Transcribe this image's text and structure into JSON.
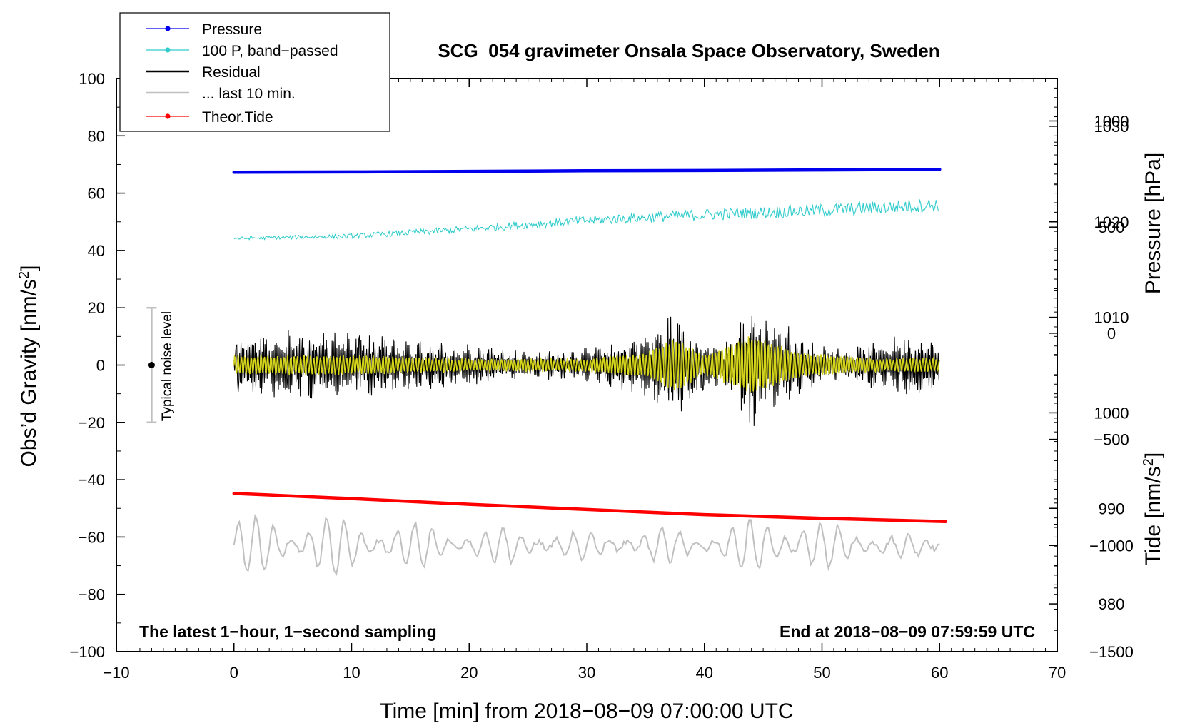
{
  "chart_data": {
    "type": "line",
    "title": "SCG_054 gravimeter Onsala Space Observatory, Sweden",
    "xlabel": "Time [min] from 2018−08−09 07:00:00 UTC",
    "ylabel_left": "Obs’d Gravity [nm/s²]",
    "ylabel_right_top": "Pressure [hPa]",
    "ylabel_right_bottom": "Tide [nm/s²]",
    "xlim": [
      -10,
      70
    ],
    "ylim_left": [
      -100,
      100
    ],
    "pressure_axis_range": [
      975,
      1035
    ],
    "tide_axis_range": [
      -1500,
      1200
    ],
    "x_ticks": [
      "−10",
      "0",
      "10",
      "20",
      "30",
      "40",
      "50",
      "60",
      "70"
    ],
    "y_ticks_left": [
      "100",
      "80",
      "60",
      "40",
      "20",
      "0",
      "−20",
      "−40",
      "−60",
      "−80",
      "−100"
    ],
    "pressure_ticks": [
      "1030",
      "1020",
      "1010",
      "1000",
      "990",
      "980"
    ],
    "tide_ticks": [
      "1000",
      "500",
      "0",
      "−500",
      "−1000",
      "−1500"
    ],
    "legend": {
      "position": "top-left",
      "entries": [
        "Pressure",
        "100 P, band−passed",
        "Residual",
        "... last 10 min.",
        "Theor.Tide"
      ]
    },
    "annotations": {
      "left_note": "The latest 1−hour, 1−second sampling",
      "right_note": "End at 2018−08−09 07:59:59 UTC",
      "noise_label": "Typical noise level",
      "noise_bar": {
        "x": -7,
        "center": 0,
        "half_range": 20
      }
    },
    "colors": {
      "pressure": "#0000ee",
      "bandpassed": "#33cccc",
      "residual": "#000000",
      "last10": "#c0c0c0",
      "tide": "#ff0000",
      "residual_filtered": "#d4d41a",
      "noise": "#c0c0c0"
    },
    "series": [
      {
        "name": "Pressure",
        "axis": "left",
        "points": [
          [
            0,
            67.3
          ],
          [
            10,
            67.4
          ],
          [
            20,
            67.6
          ],
          [
            30,
            67.8
          ],
          [
            40,
            67.9
          ],
          [
            50,
            68.1
          ],
          [
            60,
            68.3
          ]
        ]
      },
      {
        "name": "100 P, band−passed",
        "axis": "left",
        "trend": [
          [
            0,
            44.2
          ],
          [
            10,
            45.0
          ],
          [
            20,
            47.5
          ],
          [
            30,
            50.5
          ],
          [
            40,
            52.5
          ],
          [
            50,
            54.0
          ],
          [
            60,
            56.0
          ]
        ],
        "noise_amplitude": [
          [
            0,
            0.5
          ],
          [
            20,
            1.2
          ],
          [
            40,
            2.0
          ],
          [
            60,
            2.5
          ]
        ]
      },
      {
        "name": "Residual",
        "axis": "left",
        "envelope": [
          [
            0,
            10
          ],
          [
            5,
            13
          ],
          [
            10,
            12
          ],
          [
            15,
            9
          ],
          [
            20,
            8
          ],
          [
            25,
            5
          ],
          [
            30,
            6
          ],
          [
            33,
            9
          ],
          [
            35,
            12
          ],
          [
            37.5,
            20
          ],
          [
            39,
            14
          ],
          [
            41,
            8
          ],
          [
            42.5,
            11
          ],
          [
            44,
            25
          ],
          [
            45.5,
            18
          ],
          [
            47,
            15
          ],
          [
            48.5,
            9
          ],
          [
            52,
            6
          ],
          [
            55,
            9
          ],
          [
            57.5,
            12
          ],
          [
            60,
            9
          ]
        ]
      },
      {
        "name": "... last 10 min.",
        "axis": "left",
        "center": -63,
        "envelope": [
          [
            0,
            10
          ],
          [
            8,
            11
          ],
          [
            10,
            9
          ],
          [
            20,
            7
          ],
          [
            30,
            5
          ],
          [
            40,
            6
          ],
          [
            44,
            9
          ],
          [
            47,
            12
          ],
          [
            50,
            8
          ],
          [
            55,
            5
          ],
          [
            60,
            2
          ]
        ]
      },
      {
        "name": "Theor.Tide",
        "axis": "left",
        "points": [
          [
            0,
            -44.8
          ],
          [
            10,
            -46.6
          ],
          [
            20,
            -48.6
          ],
          [
            30,
            -50.4
          ],
          [
            40,
            -52.2
          ],
          [
            50,
            -53.5
          ],
          [
            60.5,
            -54.6
          ]
        ]
      },
      {
        "name": "Residual filtered",
        "axis": "left",
        "envelope": [
          [
            0,
            3
          ],
          [
            10,
            3
          ],
          [
            20,
            2
          ],
          [
            30,
            2
          ],
          [
            35,
            4
          ],
          [
            37.5,
            9
          ],
          [
            40,
            3
          ],
          [
            44,
            10
          ],
          [
            48,
            4
          ],
          [
            55,
            2
          ],
          [
            60,
            2
          ]
        ]
      }
    ]
  }
}
